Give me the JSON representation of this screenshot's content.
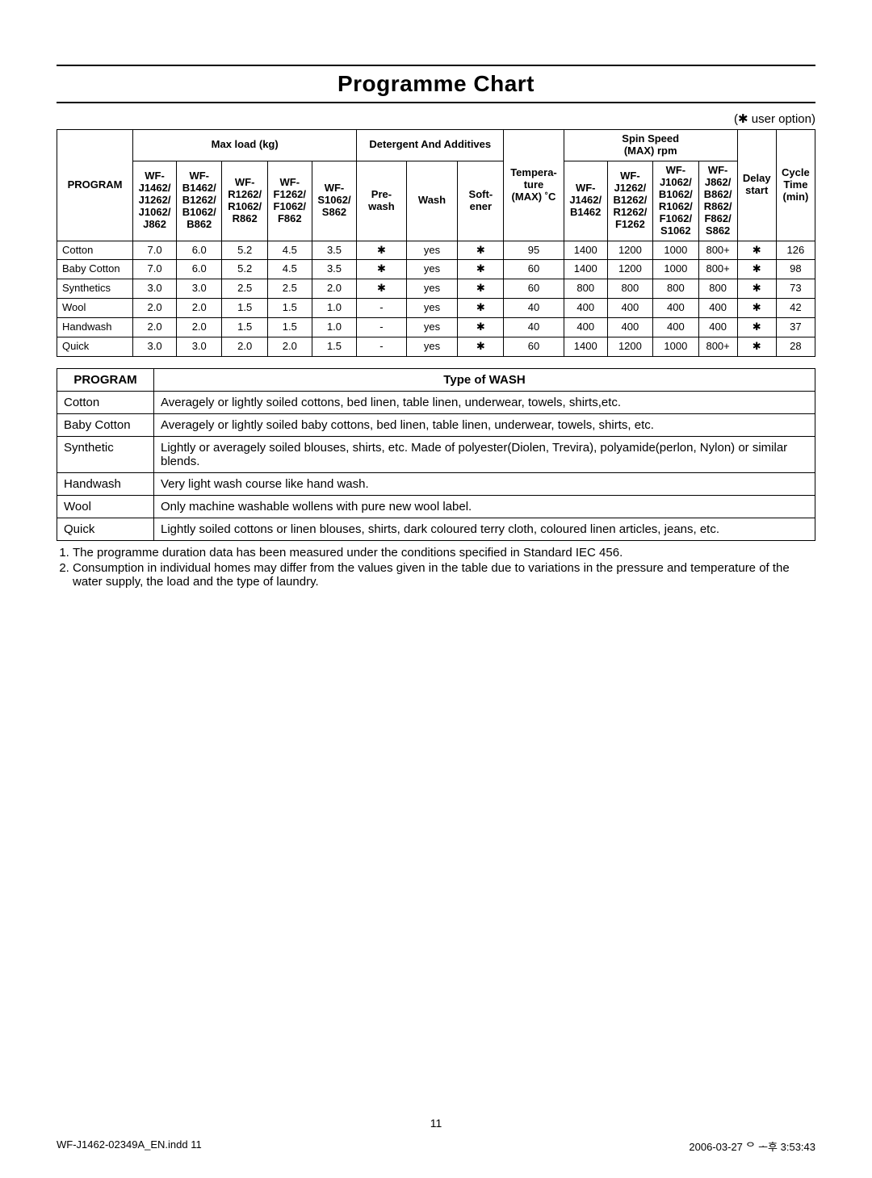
{
  "title": "Programme Chart",
  "user_option_note": "(✱ user option)",
  "chart": {
    "group_headers": {
      "program": "PROGRAM",
      "max_load": "Max load (kg)",
      "detergent": "Detergent And Additives",
      "temperature": "Tempera-\nture\n(MAX) ˚C",
      "spin": "Spin Speed\n(MAX) rpm",
      "delay": "Delay\nstart",
      "cycle": "Cycle\nTime\n(min)"
    },
    "load_cols": [
      "WF-\nJ1462/\nJ1262/\nJ1062/\nJ862",
      "WF-\nB1462/\nB1262/\nB1062/\nB862",
      "WF-\nR1262/\nR1062/\nR862",
      "WF-\nF1262/\nF1062/\nF862",
      "WF-\nS1062/\nS862"
    ],
    "detergent_cols": [
      "Pre-\nwash",
      "Wash",
      "Soft-\nener"
    ],
    "spin_cols": [
      "WF-\nJ1462/\nB1462",
      "WF-\nJ1262/\nB1262/\nR1262/\nF1262",
      "WF-\nJ1062/\nB1062/\nR1062/\nF1062/\nS1062",
      "WF-\nJ862/\nB862/\nR862/\nF862/\nS862"
    ],
    "rows": [
      {
        "program": "Cotton",
        "load": [
          "7.0",
          "6.0",
          "5.2",
          "4.5",
          "3.5"
        ],
        "det": [
          "✱",
          "yes",
          "✱"
        ],
        "temp": "95",
        "spin": [
          "1400",
          "1200",
          "1000",
          "800+"
        ],
        "delay": "✱",
        "cycle": "126"
      },
      {
        "program": "Baby Cotton",
        "load": [
          "7.0",
          "6.0",
          "5.2",
          "4.5",
          "3.5"
        ],
        "det": [
          "✱",
          "yes",
          "✱"
        ],
        "temp": "60",
        "spin": [
          "1400",
          "1200",
          "1000",
          "800+"
        ],
        "delay": "✱",
        "cycle": "98"
      },
      {
        "program": "Synthetics",
        "load": [
          "3.0",
          "3.0",
          "2.5",
          "2.5",
          "2.0"
        ],
        "det": [
          "✱",
          "yes",
          "✱"
        ],
        "temp": "60",
        "spin": [
          "800",
          "800",
          "800",
          "800"
        ],
        "delay": "✱",
        "cycle": "73"
      },
      {
        "program": "Wool",
        "load": [
          "2.0",
          "2.0",
          "1.5",
          "1.5",
          "1.0"
        ],
        "det": [
          "-",
          "yes",
          "✱"
        ],
        "temp": "40",
        "spin": [
          "400",
          "400",
          "400",
          "400"
        ],
        "delay": "✱",
        "cycle": "42"
      },
      {
        "program": "Handwash",
        "load": [
          "2.0",
          "2.0",
          "1.5",
          "1.5",
          "1.0"
        ],
        "det": [
          "-",
          "yes",
          "✱"
        ],
        "temp": "40",
        "spin": [
          "400",
          "400",
          "400",
          "400"
        ],
        "delay": "✱",
        "cycle": "37"
      },
      {
        "program": "Quick",
        "load": [
          "3.0",
          "3.0",
          "2.0",
          "2.0",
          "1.5"
        ],
        "det": [
          "-",
          "yes",
          "✱"
        ],
        "temp": "60",
        "spin": [
          "1400",
          "1200",
          "1000",
          "800+"
        ],
        "delay": "✱",
        "cycle": "28"
      }
    ]
  },
  "wash_table": {
    "headers": {
      "program": "PROGRAM",
      "type": "Type of WASH"
    },
    "rows": [
      {
        "program": "Cotton",
        "desc": "Averagely or lightly soiled cottons, bed linen, table linen, underwear, towels, shirts,etc."
      },
      {
        "program": "Baby Cotton",
        "desc": "Averagely or lightly soiled baby cottons, bed linen, table linen, underwear, towels, shirts, etc."
      },
      {
        "program": "Synthetic",
        "desc": "Lightly or averagely soiled blouses, shirts, etc. Made of polyester(Diolen, Trevira), polyamide(perlon, Nylon) or similar blends."
      },
      {
        "program": "Handwash",
        "desc": "Very light wash course like hand wash."
      },
      {
        "program": "Wool",
        "desc": "Only machine washable wollens with pure new wool label."
      },
      {
        "program": "Quick",
        "desc": "Lightly soiled cottons or linen blouses, shirts, dark coloured terry cloth, coloured linen articles, jeans, etc."
      }
    ]
  },
  "notes": [
    "The programme duration data has been measured under the conditions specified in Standard IEC 456.",
    "Consumption in individual homes may differ from the values given in the table due to variations in the pressure and temperature of the water supply, the load and the type of laundry."
  ],
  "page_number": "11",
  "footer": {
    "left": "WF-J1462-02349A_EN.indd   11",
    "right": "2006-03-27   ᄋ ᅩ후 3:53:43"
  }
}
